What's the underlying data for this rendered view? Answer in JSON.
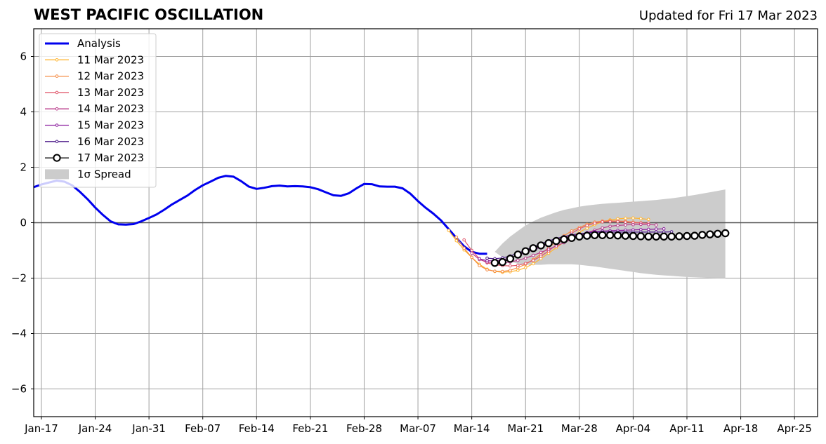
{
  "chart_data": {
    "type": "line",
    "title": "WEST PACIFIC OSCILLATION",
    "subtitle": "Updated for Fri 17 Mar 2023",
    "xlabel": "",
    "ylabel": "",
    "x_range": [
      "2023-01-16",
      "2023-04-28"
    ],
    "ylim": [
      -7,
      7
    ],
    "y_ticks": [
      -6,
      -4,
      -2,
      0,
      2,
      4,
      6
    ],
    "y_tick_labels": [
      "−6",
      "−4",
      "−2",
      "0",
      "2",
      "4",
      "6"
    ],
    "x_ticks": [
      "2023-01-17",
      "2023-01-24",
      "2023-01-31",
      "2023-02-07",
      "2023-02-14",
      "2023-02-21",
      "2023-02-28",
      "2023-03-07",
      "2023-03-14",
      "2023-03-21",
      "2023-03-28",
      "2023-04-04",
      "2023-04-11",
      "2023-04-18",
      "2023-04-25"
    ],
    "x_tick_labels": [
      "Jan-17",
      "Jan-24",
      "Jan-31",
      "Feb-07",
      "Feb-14",
      "Feb-21",
      "Feb-28",
      "Mar-07",
      "Mar-14",
      "Mar-21",
      "Mar-28",
      "Apr-04",
      "Apr-11",
      "Apr-18",
      "Apr-25"
    ],
    "grid": true,
    "legend_position": "top-left",
    "zero_line": true,
    "analysis": {
      "name": "Analysis",
      "color": "#0000ee",
      "start": "2023-01-16",
      "values": [
        1.28,
        1.38,
        1.45,
        1.52,
        1.48,
        1.35,
        1.12,
        0.85,
        0.55,
        0.28,
        0.05,
        -0.06,
        -0.07,
        -0.05,
        0.05,
        0.17,
        0.3,
        0.47,
        0.66,
        0.82,
        0.98,
        1.18,
        1.35,
        1.48,
        1.62,
        1.69,
        1.66,
        1.5,
        1.3,
        1.22,
        1.26,
        1.32,
        1.34,
        1.31,
        1.32,
        1.31,
        1.28,
        1.21,
        1.1,
        0.99,
        0.97,
        1.06,
        1.24,
        1.4,
        1.39,
        1.31,
        1.3,
        1.3,
        1.24,
        1.05,
        0.78,
        0.54,
        0.33,
        0.08,
        -0.23,
        -0.55,
        -0.85,
        -1.05,
        -1.12,
        -1.12
      ]
    },
    "forecasts": [
      {
        "name": "11 Mar 2023",
        "color": "#ffb530",
        "start": "2023-03-11",
        "values": [
          -0.28,
          -0.65,
          -0.98,
          -1.25,
          -1.5,
          -1.68,
          -1.76,
          -1.79,
          -1.77,
          -1.72,
          -1.62,
          -1.48,
          -1.3,
          -1.1,
          -0.9,
          -0.7,
          -0.5,
          -0.34,
          -0.2,
          -0.07,
          0.03,
          0.1,
          0.14,
          0.16,
          0.17,
          0.15,
          0.12
        ]
      },
      {
        "name": "12 Mar 2023",
        "color": "#f58c45",
        "start": "2023-03-12",
        "values": [
          -0.52,
          -0.92,
          -1.25,
          -1.55,
          -1.7,
          -1.75,
          -1.76,
          -1.72,
          -1.62,
          -1.5,
          -1.33,
          -1.13,
          -0.9,
          -0.68,
          -0.47,
          -0.3,
          -0.17,
          -0.06,
          0.02,
          0.06,
          0.07,
          0.06,
          0.05,
          0.02,
          0.0
        ]
      },
      {
        "name": "13 Mar 2023",
        "color": "#e0566a",
        "start": "2023-03-13",
        "values": [
          -0.62,
          -1.0,
          -1.3,
          -1.45,
          -1.52,
          -1.55,
          -1.56,
          -1.54,
          -1.47,
          -1.36,
          -1.21,
          -1.02,
          -0.8,
          -0.59,
          -0.38,
          -0.22,
          -0.1,
          -0.02,
          0.03,
          0.04,
          0.04,
          0.02,
          0.0,
          -0.01,
          -0.02
        ]
      },
      {
        "name": "14 Mar 2023",
        "color": "#b93a8a",
        "start": "2023-03-14",
        "values": [
          -1.1,
          -1.33,
          -1.42,
          -1.45,
          -1.45,
          -1.42,
          -1.36,
          -1.28,
          -1.18,
          -1.07,
          -0.96,
          -0.84,
          -0.72,
          -0.6,
          -0.48,
          -0.36,
          -0.27,
          -0.19,
          -0.13,
          -0.1,
          -0.08,
          -0.07,
          -0.06,
          -0.07,
          -0.08
        ]
      },
      {
        "name": "15 Mar 2023",
        "color": "#8c1f9e",
        "start": "2023-03-15",
        "values": [
          -1.3,
          -1.37,
          -1.38,
          -1.34,
          -1.27,
          -1.18,
          -1.08,
          -0.98,
          -0.88,
          -0.77,
          -0.67,
          -0.58,
          -0.49,
          -0.42,
          -0.36,
          -0.32,
          -0.3,
          -0.29,
          -0.28,
          -0.27,
          -0.26,
          -0.25,
          -0.24,
          -0.23,
          -0.22
        ]
      },
      {
        "name": "16 Mar 2023",
        "color": "#4b1a8a",
        "start": "2023-03-16",
        "values": [
          -1.28,
          -1.3,
          -1.27,
          -1.2,
          -1.1,
          -0.99,
          -0.87,
          -0.76,
          -0.66,
          -0.57,
          -0.5,
          -0.44,
          -0.4,
          -0.37,
          -0.35,
          -0.34,
          -0.34,
          -0.34,
          -0.34,
          -0.34,
          -0.34,
          -0.34,
          -0.34,
          -0.34,
          -0.33
        ]
      },
      {
        "name": "17 Mar 2023",
        "color": "#000000",
        "start": "2023-03-17",
        "values": [
          -1.45,
          -1.42,
          -1.3,
          -1.15,
          -1.03,
          -0.92,
          -0.82,
          -0.74,
          -0.66,
          -0.6,
          -0.55,
          -0.5,
          -0.47,
          -0.45,
          -0.45,
          -0.45,
          -0.46,
          -0.47,
          -0.48,
          -0.49,
          -0.5,
          -0.5,
          -0.5,
          -0.5,
          -0.49,
          -0.48,
          -0.47,
          -0.44,
          -0.42,
          -0.4,
          -0.38
        ]
      }
    ],
    "spread": {
      "name": "1σ Spread",
      "color": "#cccccc",
      "start": "2023-03-17",
      "upper": [
        -1.05,
        -0.75,
        -0.5,
        -0.3,
        -0.1,
        0.05,
        0.18,
        0.28,
        0.38,
        0.46,
        0.52,
        0.58,
        0.62,
        0.65,
        0.68,
        0.7,
        0.72,
        0.74,
        0.76,
        0.78,
        0.8,
        0.82,
        0.85,
        0.88,
        0.92,
        0.96,
        1.0,
        1.05,
        1.1,
        1.15,
        1.2
      ],
      "lower": [
        -1.05,
        -1.25,
        -1.4,
        -1.48,
        -1.52,
        -1.52,
        -1.52,
        -1.5,
        -1.5,
        -1.5,
        -1.5,
        -1.52,
        -1.55,
        -1.58,
        -1.62,
        -1.66,
        -1.7,
        -1.74,
        -1.78,
        -1.82,
        -1.85,
        -1.88,
        -1.9,
        -1.92,
        -1.94,
        -1.96,
        -1.97,
        -1.98,
        -1.99,
        -2.0,
        -2.0
      ]
    },
    "legend": [
      {
        "label": "Analysis",
        "kind": "thick-line",
        "color": "#0000ee"
      },
      {
        "label": "11 Mar 2023",
        "kind": "marker-line",
        "color": "#ffb530"
      },
      {
        "label": "12 Mar 2023",
        "kind": "marker-line",
        "color": "#f58c45"
      },
      {
        "label": "13 Mar 2023",
        "kind": "marker-line",
        "color": "#e0566a"
      },
      {
        "label": "14 Mar 2023",
        "kind": "marker-line",
        "color": "#b93a8a"
      },
      {
        "label": "15 Mar 2023",
        "kind": "marker-line",
        "color": "#8c1f9e"
      },
      {
        "label": "16 Mar 2023",
        "kind": "marker-line",
        "color": "#4b1a8a"
      },
      {
        "label": "17 Mar 2023",
        "kind": "circle-line",
        "color": "#000000"
      },
      {
        "label": "1σ Spread",
        "kind": "patch",
        "color": "#cccccc"
      }
    ]
  }
}
